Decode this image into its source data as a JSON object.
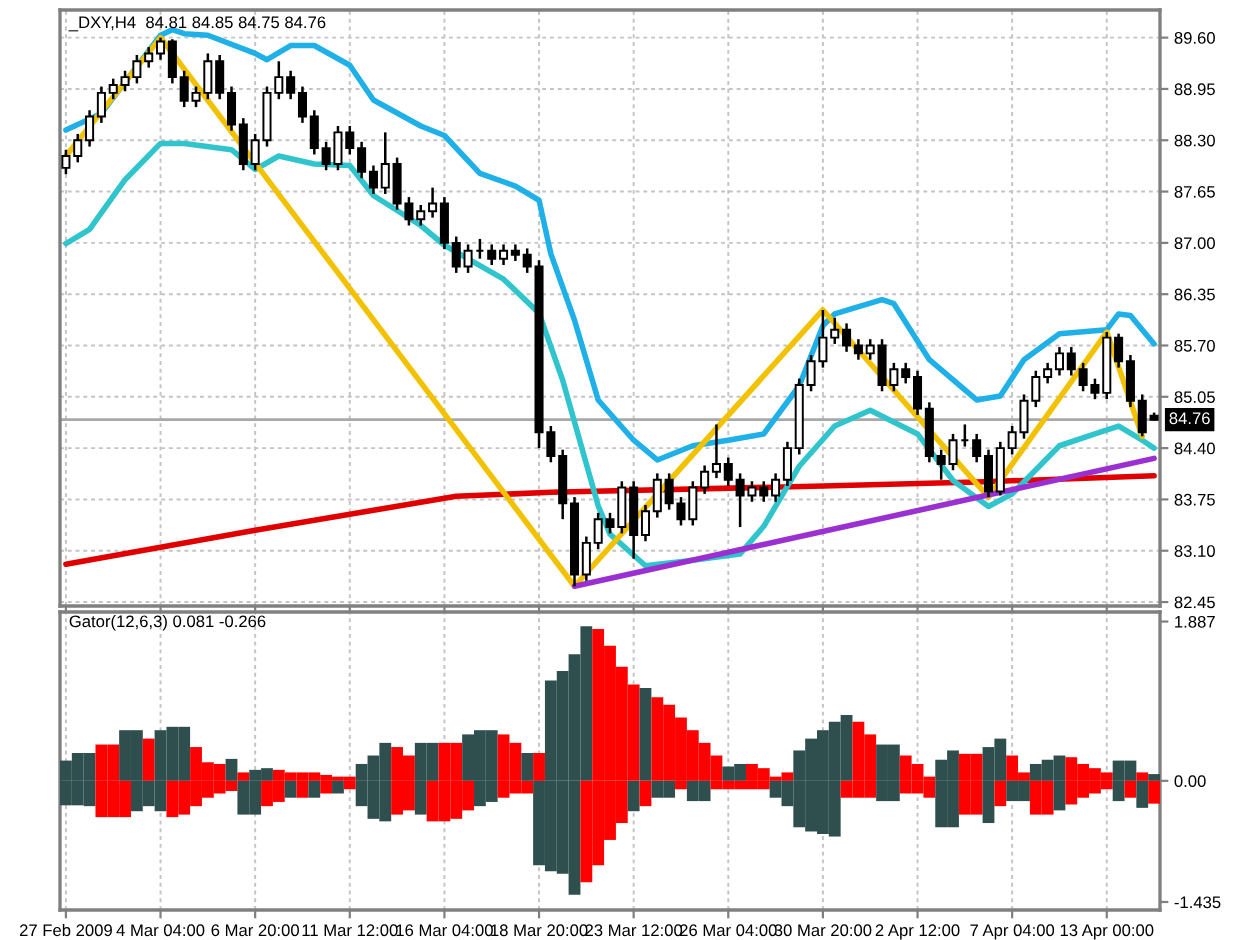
{
  "chart_data": [
    {
      "type": "candlestick",
      "title": "_DXY,H4  84.81 84.85 84.75 84.76",
      "categories": [
        null,
        null,
        null,
        null,
        null,
        null,
        null,
        null,
        null,
        null,
        null,
        null,
        null,
        null,
        null,
        null,
        null,
        null,
        null,
        null,
        null,
        null,
        null,
        null,
        null,
        null,
        null,
        null,
        null,
        null,
        null,
        null,
        null,
        null,
        null,
        null,
        null,
        null,
        null,
        null,
        null,
        null,
        null,
        null,
        null,
        null,
        null,
        null,
        null,
        null,
        null,
        null,
        null,
        null,
        null,
        null,
        null,
        null,
        null,
        null,
        null,
        null,
        null,
        null,
        null,
        null,
        null,
        null,
        null,
        null,
        null,
        null,
        null,
        null,
        null,
        null,
        null,
        null,
        null,
        null,
        null,
        null,
        null,
        null,
        null,
        null,
        null,
        null,
        null,
        null,
        null,
        null,
        null
      ],
      "ohlc": [
        [
          87.95,
          88.18,
          87.87,
          88.1
        ],
        [
          88.1,
          88.38,
          88.02,
          88.3
        ],
        [
          88.3,
          88.68,
          88.22,
          88.6
        ],
        [
          88.6,
          88.98,
          88.52,
          88.9
        ],
        [
          88.9,
          89.08,
          88.82,
          89.0
        ],
        [
          89.0,
          89.18,
          88.92,
          89.1
        ],
        [
          89.1,
          89.38,
          89.02,
          89.3
        ],
        [
          89.3,
          89.48,
          89.22,
          89.4
        ],
        [
          89.4,
          89.6,
          89.32,
          89.55
        ],
        [
          89.55,
          89.58,
          89.02,
          89.1
        ],
        [
          89.1,
          89.18,
          88.72,
          88.8
        ],
        [
          88.8,
          88.98,
          88.72,
          88.9
        ],
        [
          88.9,
          89.4,
          88.82,
          89.3
        ],
        [
          89.3,
          89.38,
          88.82,
          88.9
        ],
        [
          88.9,
          88.98,
          88.42,
          88.5
        ],
        [
          88.5,
          88.58,
          87.92,
          88.0
        ],
        [
          88.0,
          88.38,
          87.92,
          88.3
        ],
        [
          88.3,
          88.98,
          88.22,
          88.9
        ],
        [
          88.9,
          89.3,
          88.82,
          89.1
        ],
        [
          89.1,
          89.18,
          88.82,
          88.9
        ],
        [
          88.9,
          88.98,
          88.52,
          88.6
        ],
        [
          88.6,
          88.68,
          88.12,
          88.2
        ],
        [
          88.2,
          88.28,
          87.92,
          88.0
        ],
        [
          88.0,
          88.48,
          87.92,
          88.4
        ],
        [
          88.4,
          88.48,
          88.12,
          88.2
        ],
        [
          88.2,
          88.28,
          87.82,
          87.9
        ],
        [
          87.9,
          87.98,
          87.62,
          87.7
        ],
        [
          87.7,
          88.4,
          87.62,
          88.0
        ],
        [
          88.0,
          88.08,
          87.42,
          87.5
        ],
        [
          87.5,
          87.58,
          87.22,
          87.3
        ],
        [
          87.3,
          87.48,
          87.22,
          87.4
        ],
        [
          87.4,
          87.7,
          87.32,
          87.5
        ],
        [
          87.5,
          87.58,
          86.92,
          87.0
        ],
        [
          87.0,
          87.08,
          86.62,
          86.7
        ],
        [
          86.7,
          86.98,
          86.62,
          86.9
        ],
        [
          86.9,
          87.05,
          86.8,
          86.9
        ],
        [
          86.9,
          86.98,
          86.72,
          86.8
        ],
        [
          86.8,
          86.98,
          86.72,
          86.9
        ],
        [
          86.9,
          86.98,
          86.77,
          86.85
        ],
        [
          86.85,
          86.93,
          86.62,
          86.7
        ],
        [
          86.7,
          86.78,
          84.4,
          84.6
        ],
        [
          84.6,
          84.68,
          84.22,
          84.3
        ],
        [
          84.3,
          84.38,
          83.5,
          83.7
        ],
        [
          83.7,
          83.78,
          82.65,
          82.8
        ],
        [
          82.8,
          83.28,
          82.72,
          83.2
        ],
        [
          83.2,
          83.58,
          83.12,
          83.5
        ],
        [
          83.5,
          83.58,
          83.32,
          83.4
        ],
        [
          83.4,
          83.98,
          83.32,
          83.9
        ],
        [
          83.9,
          83.98,
          83.0,
          83.3
        ],
        [
          83.3,
          83.68,
          83.22,
          83.6
        ],
        [
          83.6,
          84.08,
          83.52,
          84.0
        ],
        [
          84.0,
          84.08,
          83.62,
          83.7
        ],
        [
          83.7,
          83.78,
          83.42,
          83.5
        ],
        [
          83.5,
          83.98,
          83.42,
          83.9
        ],
        [
          83.9,
          84.18,
          83.82,
          84.1
        ],
        [
          84.1,
          84.7,
          84.02,
          84.2
        ],
        [
          84.2,
          84.28,
          83.92,
          84.0
        ],
        [
          84.0,
          84.08,
          83.4,
          83.8
        ],
        [
          83.8,
          83.98,
          83.72,
          83.9
        ],
        [
          83.9,
          83.98,
          83.72,
          83.8
        ],
        [
          83.8,
          84.08,
          83.72,
          84.0
        ],
        [
          84.0,
          84.48,
          83.92,
          84.4
        ],
        [
          84.4,
          85.28,
          84.32,
          85.2
        ],
        [
          85.2,
          85.58,
          85.12,
          85.5
        ],
        [
          85.5,
          86.15,
          85.42,
          85.8
        ],
        [
          85.8,
          86.05,
          85.72,
          85.9
        ],
        [
          85.9,
          85.98,
          85.62,
          85.7
        ],
        [
          85.7,
          85.78,
          85.52,
          85.6
        ],
        [
          85.6,
          85.78,
          85.52,
          85.7
        ],
        [
          85.7,
          85.78,
          85.12,
          85.2
        ],
        [
          85.2,
          85.48,
          85.12,
          85.4
        ],
        [
          85.4,
          85.48,
          85.22,
          85.3
        ],
        [
          85.3,
          85.38,
          84.82,
          84.9
        ],
        [
          84.9,
          84.98,
          84.22,
          84.3
        ],
        [
          84.3,
          84.38,
          84.0,
          84.2
        ],
        [
          84.2,
          84.58,
          84.12,
          84.5
        ],
        [
          84.5,
          84.7,
          84.42,
          84.5
        ],
        [
          84.5,
          84.58,
          84.22,
          84.3
        ],
        [
          84.3,
          84.38,
          83.78,
          83.85
        ],
        [
          83.85,
          84.48,
          83.8,
          84.4
        ],
        [
          84.4,
          84.68,
          84.32,
          84.6
        ],
        [
          84.6,
          85.08,
          84.52,
          85.0
        ],
        [
          85.0,
          85.38,
          84.92,
          85.3
        ],
        [
          85.3,
          85.48,
          85.22,
          85.4
        ],
        [
          85.4,
          85.68,
          85.32,
          85.6
        ],
        [
          85.6,
          85.68,
          85.32,
          85.4
        ],
        [
          85.4,
          85.48,
          85.12,
          85.2
        ],
        [
          85.2,
          85.28,
          85.02,
          85.1
        ],
        [
          85.1,
          85.87,
          85.02,
          85.8
        ],
        [
          85.8,
          85.85,
          85.42,
          85.5
        ],
        [
          85.5,
          85.58,
          84.92,
          85.0
        ],
        [
          85.0,
          85.08,
          84.55,
          84.6
        ],
        [
          84.81,
          84.85,
          84.75,
          84.76
        ]
      ],
      "series": [
        {
          "type": "line",
          "color": "#e00000",
          "values": [
            82.93,
            null,
            null,
            null,
            null,
            null,
            null,
            null,
            null,
            null,
            null,
            null,
            null,
            null,
            null,
            null,
            83.36,
            null,
            null,
            null,
            null,
            null,
            null,
            null,
            null,
            null,
            null,
            null,
            null,
            null,
            null,
            null,
            null,
            83.79,
            null,
            null,
            null,
            null,
            null,
            null,
            null,
            83.84,
            null,
            null,
            null,
            null,
            null,
            null,
            null,
            null,
            null,
            null,
            null,
            null,
            null,
            null,
            null,
            null,
            null,
            null,
            null,
            null,
            null,
            null,
            83.92,
            null,
            null,
            null,
            null,
            null,
            null,
            null,
            null,
            null,
            null,
            null,
            null,
            83.97,
            null,
            null,
            null,
            null,
            null,
            null,
            null,
            null,
            null,
            null,
            null,
            null,
            null,
            null,
            84.05
          ]
        },
        {
          "type": "line",
          "color": "#1fb0e8",
          "values": [
            88.43,
            null,
            null,
            88.64,
            null,
            null,
            null,
            null,
            89.63,
            89.7,
            89.65,
            null,
            89.63,
            null,
            null,
            null,
            89.4,
            89.32,
            null,
            89.5,
            null,
            89.5,
            null,
            null,
            89.25,
            null,
            88.81,
            null,
            null,
            null,
            88.48,
            null,
            88.36,
            null,
            null,
            87.88,
            null,
            null,
            87.72,
            null,
            87.54,
            86.86,
            null,
            86.02,
            null,
            85.01,
            null,
            null,
            84.5,
            null,
            84.25,
            null,
            null,
            84.43,
            null,
            null,
            84.5,
            null,
            null,
            84.58,
            null,
            null,
            85.19,
            null,
            85.95,
            86.1,
            null,
            null,
            null,
            86.28,
            86.23,
            null,
            null,
            85.52,
            null,
            null,
            null,
            85.01,
            null,
            85.06,
            null,
            85.52,
            null,
            null,
            85.85,
            null,
            null,
            null,
            85.9,
            86.1,
            86.08,
            null,
            85.72
          ]
        },
        {
          "type": "line",
          "color": "#30c4cc",
          "values": [
            86.99,
            null,
            87.17,
            null,
            null,
            87.8,
            null,
            null,
            88.26,
            null,
            88.26,
            null,
            null,
            null,
            88.18,
            null,
            87.93,
            null,
            88.1,
            null,
            null,
            88.0,
            null,
            null,
            87.98,
            null,
            87.6,
            null,
            null,
            null,
            87.22,
            null,
            86.97,
            null,
            null,
            null,
            null,
            86.54,
            null,
            null,
            86.11,
            null,
            85.26,
            null,
            null,
            83.67,
            83.31,
            null,
            null,
            82.91,
            null,
            null,
            null,
            82.98,
            null,
            null,
            null,
            83.06,
            null,
            83.41,
            null,
            null,
            84.17,
            null,
            null,
            84.68,
            null,
            null,
            84.88,
            null,
            null,
            null,
            84.58,
            null,
            null,
            83.99,
            null,
            null,
            83.66,
            null,
            83.82,
            null,
            null,
            null,
            84.43,
            null,
            null,
            84.58,
            null,
            84.68,
            null,
            84.5,
            84.4
          ]
        },
        {
          "type": "line",
          "color": "#f2c200",
          "values": [
            88.1,
            null,
            null,
            null,
            null,
            null,
            null,
            null,
            89.6,
            null,
            null,
            null,
            null,
            null,
            null,
            null,
            null,
            null,
            null,
            null,
            null,
            null,
            null,
            null,
            null,
            null,
            null,
            null,
            null,
            null,
            null,
            null,
            null,
            null,
            null,
            null,
            null,
            null,
            null,
            null,
            null,
            null,
            null,
            82.65,
            null,
            null,
            null,
            null,
            null,
            null,
            null,
            null,
            null,
            null,
            null,
            null,
            null,
            null,
            null,
            null,
            null,
            null,
            null,
            null,
            86.15,
            null,
            null,
            null,
            null,
            null,
            null,
            null,
            null,
            null,
            null,
            null,
            null,
            null,
            83.78,
            null,
            null,
            null,
            null,
            null,
            null,
            null,
            null,
            null,
            85.87,
            null,
            null,
            84.55,
            null
          ]
        },
        {
          "type": "line",
          "color": "#9b30d0",
          "values": [
            null,
            null,
            null,
            null,
            null,
            null,
            null,
            null,
            null,
            null,
            null,
            null,
            null,
            null,
            null,
            null,
            null,
            null,
            null,
            null,
            null,
            null,
            null,
            null,
            null,
            null,
            null,
            null,
            null,
            null,
            null,
            null,
            null,
            null,
            null,
            null,
            null,
            null,
            null,
            null,
            null,
            null,
            null,
            82.65,
            null,
            null,
            null,
            null,
            null,
            null,
            null,
            null,
            null,
            null,
            null,
            null,
            null,
            null,
            null,
            null,
            null,
            null,
            null,
            null,
            null,
            null,
            null,
            null,
            null,
            null,
            null,
            null,
            null,
            null,
            null,
            null,
            null,
            null,
            null,
            null,
            null,
            null,
            null,
            null,
            null,
            null,
            null,
            null,
            null,
            null,
            null,
            null,
            84.27
          ]
        }
      ],
      "ylim": [
        82.4,
        89.95
      ],
      "yticks": [
        {
          "value": 89.6,
          "label": "89.60"
        },
        {
          "value": 88.95,
          "label": "88.95"
        },
        {
          "value": 88.3,
          "label": "88.30"
        },
        {
          "value": 87.65,
          "label": "87.65"
        },
        {
          "value": 87.0,
          "label": "87.00"
        },
        {
          "value": 86.35,
          "label": "86.35"
        },
        {
          "value": 85.7,
          "label": "85.70"
        },
        {
          "value": 85.05,
          "label": "85.05"
        },
        {
          "value": 84.4,
          "label": "84.40"
        },
        {
          "value": 83.75,
          "label": "83.75"
        },
        {
          "value": 83.1,
          "label": "83.10"
        },
        {
          "value": 82.45,
          "label": "82.45"
        }
      ],
      "ref_lines": [
        {
          "axis": "y",
          "value": 84.76,
          "label": "84.76",
          "color": "#a8a8a8"
        }
      ],
      "tick_labels": "y",
      "grid": true
    },
    {
      "type": "bar",
      "title": "Gator(12,6,3) 0.081 -0.266",
      "stacked": true,
      "categories": [
        "27 Feb 2009",
        null,
        null,
        null,
        null,
        null,
        null,
        null,
        "4 Mar 04:00",
        null,
        null,
        null,
        null,
        null,
        null,
        null,
        "6 Mar 20:00",
        null,
        null,
        null,
        null,
        null,
        null,
        null,
        "11 Mar 12:00",
        null,
        null,
        null,
        null,
        null,
        null,
        null,
        "16 Mar 04:00",
        null,
        null,
        null,
        null,
        null,
        null,
        null,
        "18 Mar 20:00",
        null,
        null,
        null,
        null,
        null,
        null,
        null,
        "23 Mar 12:00",
        null,
        null,
        null,
        null,
        null,
        null,
        null,
        "26 Mar 04:00",
        null,
        null,
        null,
        null,
        null,
        null,
        null,
        "30 Mar 20:00",
        null,
        null,
        null,
        null,
        null,
        null,
        null,
        "2 Apr 12:00",
        null,
        null,
        null,
        null,
        null,
        null,
        null,
        "7 Apr 04:00",
        null,
        null,
        null,
        null,
        null,
        null,
        null,
        "13 Apr 00:00",
        null,
        null,
        null,
        null
      ],
      "series": [
        {
          "values": [
            0.24,
            0.33,
            0.33,
            0.43,
            0.43,
            0.6,
            0.6,
            0.5,
            0.6,
            0.64,
            0.64,
            0.4,
            0.22,
            0.2,
            0.26,
            0.1,
            0.13,
            0.15,
            0.13,
            0.1,
            0.1,
            0.1,
            0.07,
            0.05,
            0.05,
            0.2,
            0.3,
            0.45,
            0.4,
            0.3,
            0.45,
            0.45,
            0.45,
            0.45,
            0.55,
            0.6,
            0.6,
            0.55,
            0.45,
            0.33,
            0.33,
            1.19,
            1.3,
            1.5,
            1.83,
            1.8,
            1.6,
            1.35,
            1.14,
            1.1,
            0.99,
            0.9,
            0.75,
            0.6,
            0.45,
            0.3,
            0.17,
            0.2,
            0.2,
            0.15,
            0.05,
            0.1,
            0.36,
            0.5,
            0.6,
            0.7,
            0.78,
            0.7,
            0.55,
            0.43,
            0.43,
            0.3,
            0.2,
            0.05,
            0.25,
            0.36,
            0.32,
            0.32,
            0.4,
            0.5,
            0.3,
            0.1,
            0.2,
            0.25,
            0.3,
            0.28,
            0.2,
            0.15,
            0.1,
            0.24,
            0.24,
            0.1,
            0.08
          ],
          "colors": [
            "#2f4f4f",
            "#2f4f4f",
            "#2f4f4f",
            "#ff0000",
            "#ff0000",
            "#2f4f4f",
            "#2f4f4f",
            "#ff0000",
            "#2f4f4f",
            "#2f4f4f",
            "#2f4f4f",
            "#ff0000",
            "#ff0000",
            "#ff0000",
            "#2f4f4f",
            "#ff0000",
            "#2f4f4f",
            "#2f4f4f",
            "#ff0000",
            "#ff0000",
            "#ff0000",
            "#ff0000",
            "#ff0000",
            "#ff0000",
            "#ff0000",
            "#2f4f4f",
            "#2f4f4f",
            "#2f4f4f",
            "#ff0000",
            "#ff0000",
            "#2f4f4f",
            "#2f4f4f",
            "#ff0000",
            "#ff0000",
            "#2f4f4f",
            "#2f4f4f",
            "#2f4f4f",
            "#ff0000",
            "#ff0000",
            "#2f4f4f",
            "#ff0000",
            "#2f4f4f",
            "#2f4f4f",
            "#2f4f4f",
            "#2f4f4f",
            "#ff0000",
            "#ff0000",
            "#ff0000",
            "#ff0000",
            "#2f4f4f",
            "#ff0000",
            "#ff0000",
            "#ff0000",
            "#ff0000",
            "#ff0000",
            "#ff0000",
            "#2f4f4f",
            "#2f4f4f",
            "#ff0000",
            "#ff0000",
            "#ff0000",
            "#ff0000",
            "#2f4f4f",
            "#2f4f4f",
            "#2f4f4f",
            "#2f4f4f",
            "#2f4f4f",
            "#ff0000",
            "#ff0000",
            "#2f4f4f",
            "#2f4f4f",
            "#ff0000",
            "#ff0000",
            "#ff0000",
            "#2f4f4f",
            "#2f4f4f",
            "#ff0000",
            "#ff0000",
            "#2f4f4f",
            "#2f4f4f",
            "#ff0000",
            "#ff0000",
            "#2f4f4f",
            "#2f4f4f",
            "#2f4f4f",
            "#ff0000",
            "#ff0000",
            "#ff0000",
            "#ff0000",
            "#2f4f4f",
            "#2f4f4f",
            "#ff0000",
            "#2f4f4f"
          ]
        },
        {
          "values": [
            -0.29,
            -0.29,
            -0.3,
            -0.43,
            -0.43,
            -0.43,
            -0.36,
            -0.3,
            -0.36,
            -0.43,
            -0.4,
            -0.3,
            -0.2,
            -0.15,
            -0.12,
            -0.4,
            -0.4,
            -0.3,
            -0.25,
            -0.2,
            -0.2,
            -0.2,
            -0.15,
            -0.15,
            -0.1,
            -0.3,
            -0.45,
            -0.48,
            -0.4,
            -0.35,
            -0.4,
            -0.48,
            -0.48,
            -0.45,
            -0.35,
            -0.3,
            -0.25,
            -0.2,
            -0.15,
            -0.15,
            -1.0,
            -1.07,
            -1.1,
            -1.35,
            -1.2,
            -1.0,
            -0.7,
            -0.5,
            -0.36,
            -0.3,
            -0.2,
            -0.2,
            -0.1,
            -0.24,
            -0.24,
            -0.1,
            -0.1,
            -0.1,
            -0.1,
            -0.1,
            -0.2,
            -0.3,
            -0.55,
            -0.6,
            -0.63,
            -0.66,
            -0.2,
            -0.2,
            -0.2,
            -0.24,
            -0.24,
            -0.15,
            -0.15,
            -0.2,
            -0.55,
            -0.55,
            -0.4,
            -0.4,
            -0.5,
            -0.3,
            -0.24,
            -0.24,
            -0.4,
            -0.4,
            -0.35,
            -0.28,
            -0.2,
            -0.15,
            -0.1,
            -0.24,
            -0.2,
            -0.32,
            -0.27
          ],
          "colors": [
            "#2f4f4f",
            "#2f4f4f",
            "#2f4f4f",
            "#ff0000",
            "#ff0000",
            "#ff0000",
            "#2f4f4f",
            "#2f4f4f",
            "#2f4f4f",
            "#ff0000",
            "#ff0000",
            "#ff0000",
            "#ff0000",
            "#ff0000",
            "#ff0000",
            "#2f4f4f",
            "#2f4f4f",
            "#ff0000",
            "#ff0000",
            "#2f4f4f",
            "#ff0000",
            "#2f4f4f",
            "#ff0000",
            "#2f4f4f",
            "#ff0000",
            "#2f4f4f",
            "#2f4f4f",
            "#2f4f4f",
            "#ff0000",
            "#ff0000",
            "#2f4f4f",
            "#ff0000",
            "#ff0000",
            "#ff0000",
            "#ff0000",
            "#2f4f4f",
            "#2f4f4f",
            "#ff0000",
            "#ff0000",
            "#ff0000",
            "#2f4f4f",
            "#2f4f4f",
            "#2f4f4f",
            "#2f4f4f",
            "#ff0000",
            "#ff0000",
            "#ff0000",
            "#ff0000",
            "#2f4f4f",
            "#ff0000",
            "#2f4f4f",
            "#2f4f4f",
            "#ff0000",
            "#2f4f4f",
            "#2f4f4f",
            "#ff0000",
            "#ff0000",
            "#ff0000",
            "#ff0000",
            "#ff0000",
            "#2f4f4f",
            "#2f4f4f",
            "#2f4f4f",
            "#2f4f4f",
            "#2f4f4f",
            "#2f4f4f",
            "#ff0000",
            "#ff0000",
            "#ff0000",
            "#2f4f4f",
            "#2f4f4f",
            "#ff0000",
            "#ff0000",
            "#ff0000",
            "#2f4f4f",
            "#2f4f4f",
            "#ff0000",
            "#ff0000",
            "#2f4f4f",
            "#ff0000",
            "#2f4f4f",
            "#2f4f4f",
            "#ff0000",
            "#ff0000",
            "#2f4f4f",
            "#ff0000",
            "#ff0000",
            "#ff0000",
            "#ff0000",
            "#2f4f4f",
            "#ff0000",
            "#2f4f4f",
            "#ff0000"
          ]
        }
      ],
      "ylim": [
        -1.53,
        2.0
      ],
      "yticks": [
        {
          "value": 1.887,
          "label": "1.887"
        },
        {
          "value": 0,
          "label": "0.00"
        },
        {
          "value": -1.435,
          "label": "-1.435"
        }
      ],
      "grid": "x"
    }
  ]
}
